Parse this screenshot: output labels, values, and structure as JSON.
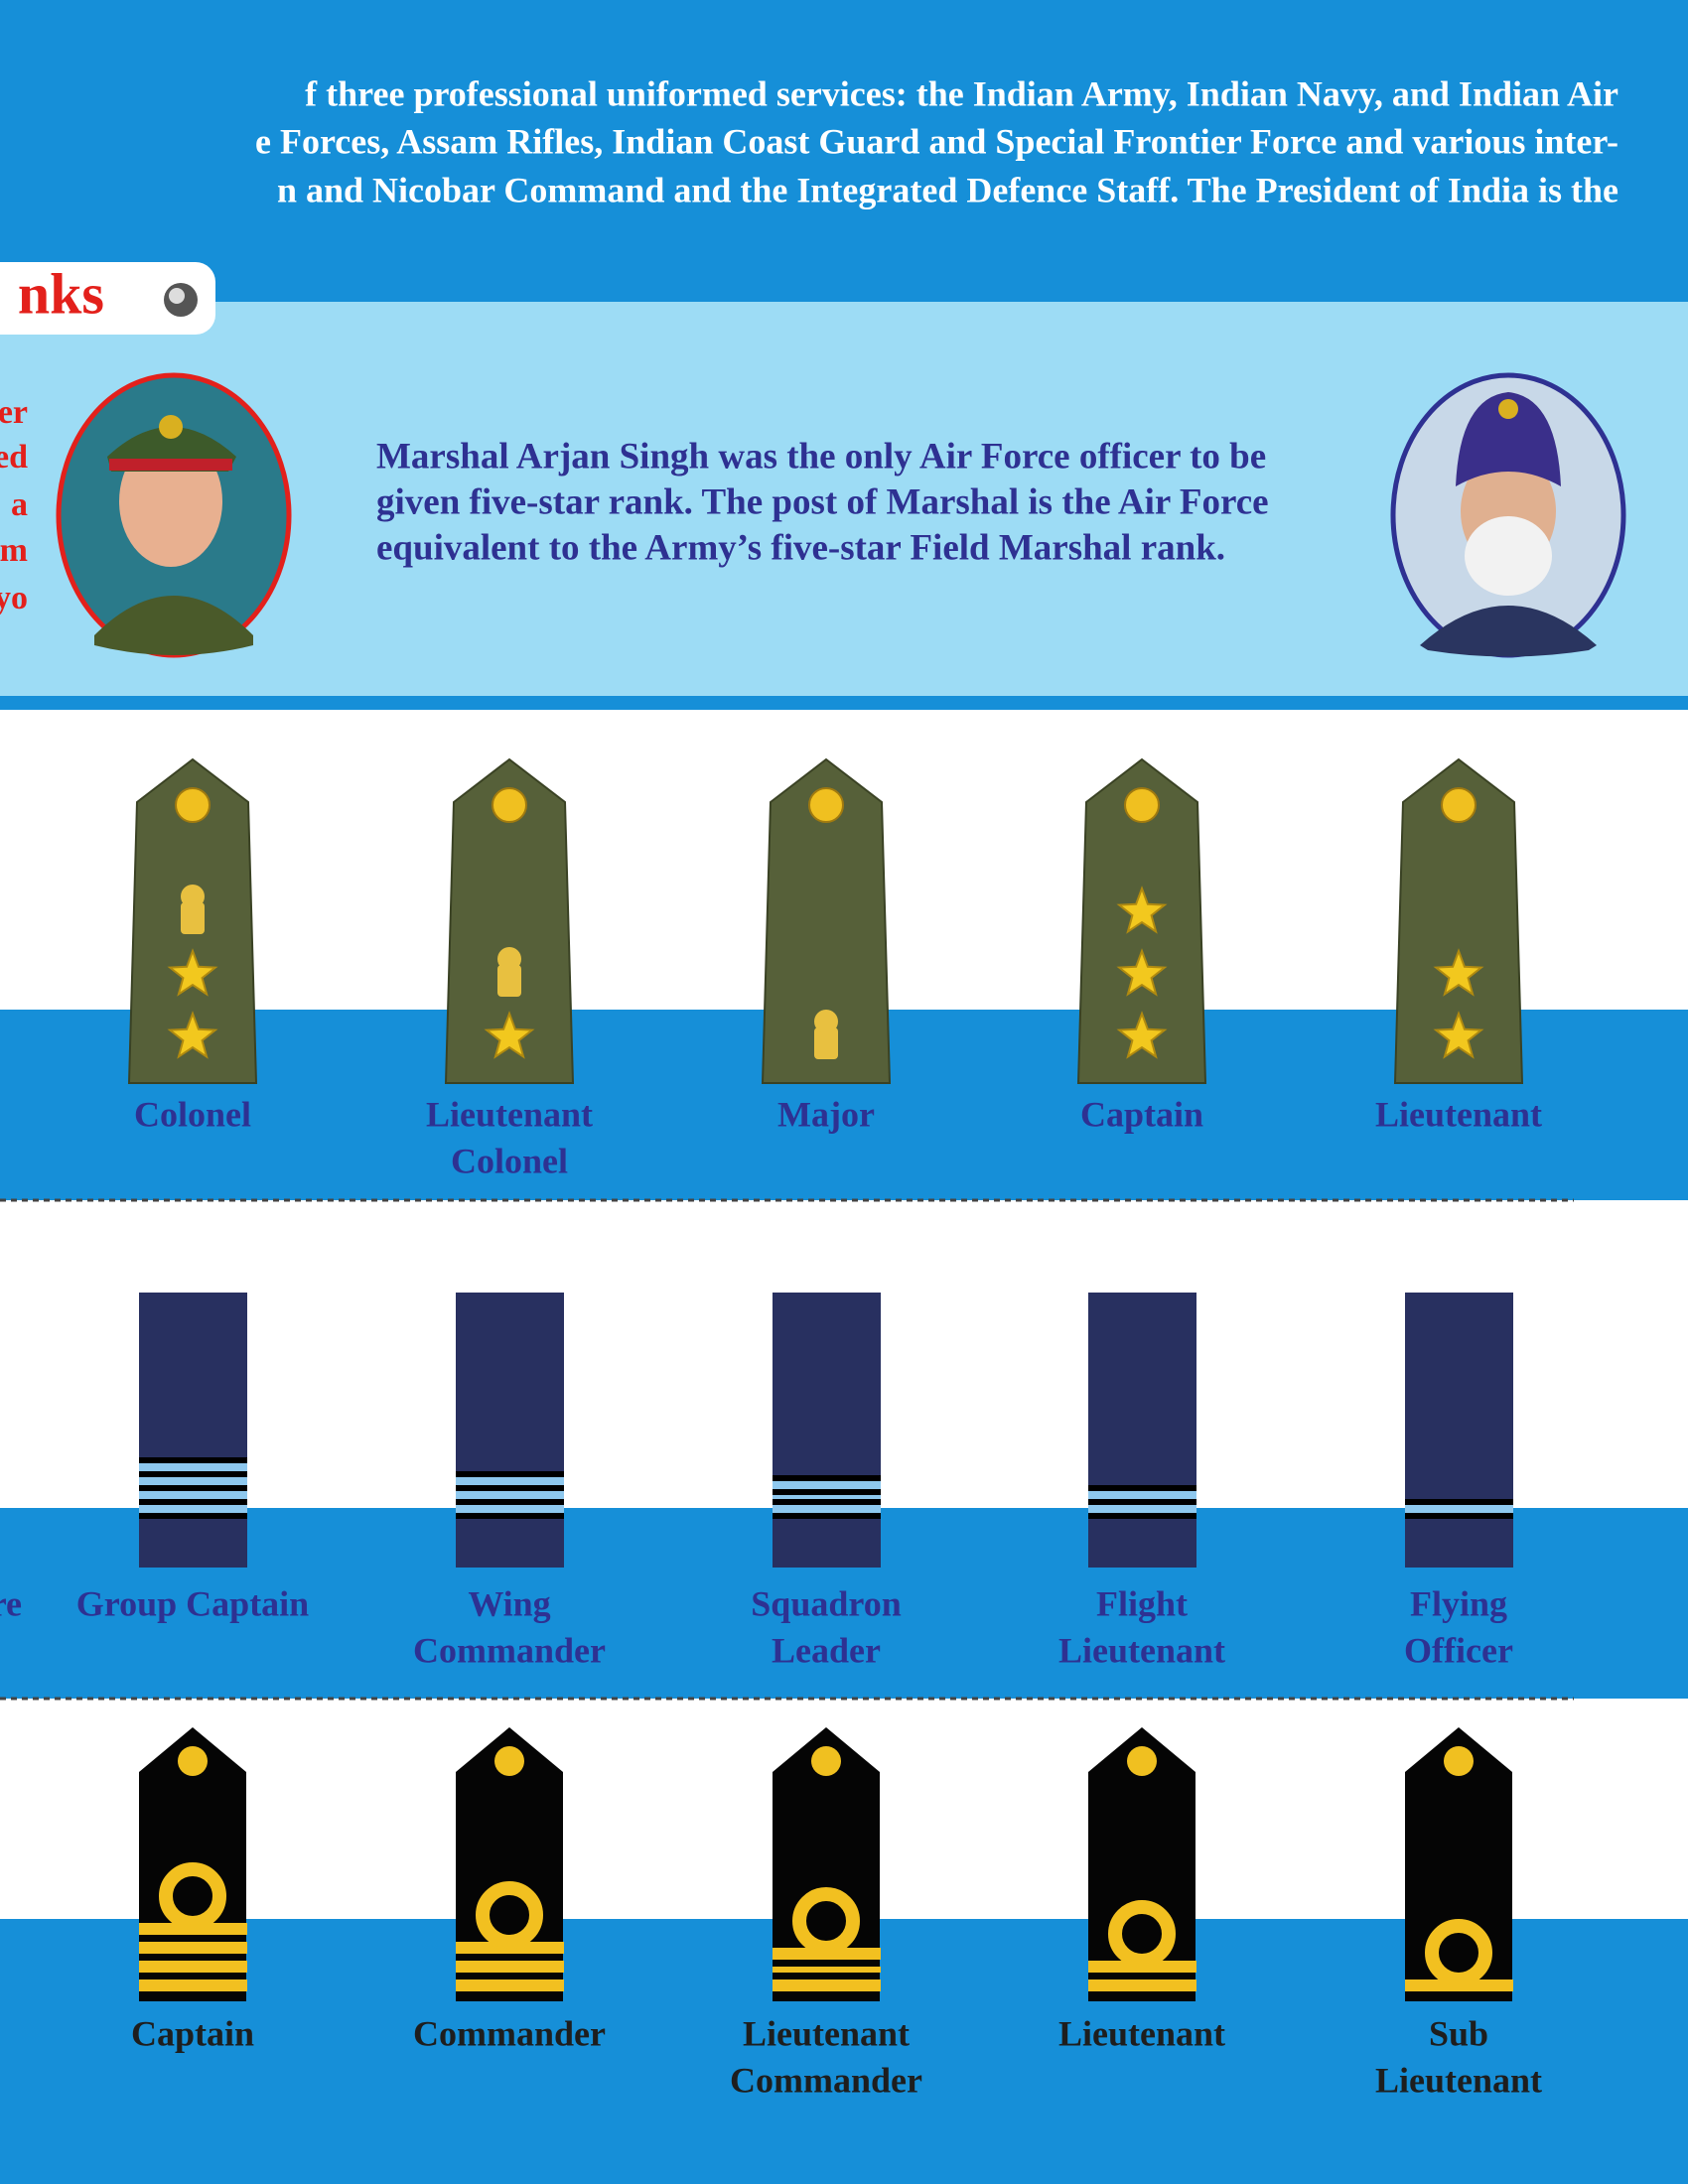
{
  "header": {
    "lines": [
      "f three professional uniformed services: the Indian Army, Indian Navy, and Indian Air",
      "e Forces, Assam Rifles, Indian Coast Guard and Special Frontier Force and various inter-",
      "n and Nicobar Command and the Integrated Defence Staff. The President of India is the"
    ]
  },
  "section_tab": "nks",
  "left_note_lines": [
    "er",
    "ed",
    "a",
    "m",
    "yo"
  ],
  "marshal_note_lines": [
    "Marshal Arjan Singh was the only Air Force officer to be",
    "given five-star rank. The post of Marshal is the Air Force",
    "equivalent to the Army’s five-star Field Marshal rank."
  ],
  "army": {
    "ranks": [
      [
        "Colonel"
      ],
      [
        "Lieutenant",
        "Colonel"
      ],
      [
        "Major"
      ],
      [
        "Captain"
      ],
      [
        "Lieutenant"
      ]
    ]
  },
  "air_force": {
    "cropped_label": "re",
    "ranks": [
      [
        "Group Captain"
      ],
      [
        "Wing",
        "Commander"
      ],
      [
        "Squadron",
        "Leader"
      ],
      [
        "Flight",
        "Lieutenant"
      ],
      [
        "Flying",
        "Officer"
      ]
    ]
  },
  "navy": {
    "ranks": [
      [
        "Captain"
      ],
      [
        "Commander"
      ],
      [
        "Lieutenant",
        "Commander"
      ],
      [
        "Lieutenant"
      ],
      [
        "Sub",
        "Lieutenant"
      ]
    ]
  }
}
